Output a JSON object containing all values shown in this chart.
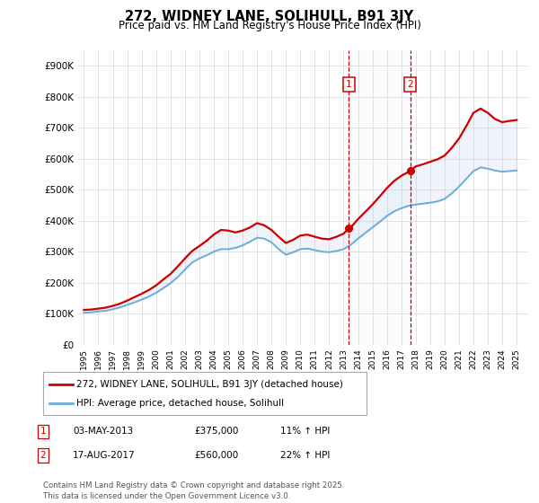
{
  "title": "272, WIDNEY LANE, SOLIHULL, B91 3JY",
  "subtitle": "Price paid vs. HM Land Registry's House Price Index (HPI)",
  "ylim": [
    0,
    950000
  ],
  "yticks": [
    0,
    100000,
    200000,
    300000,
    400000,
    500000,
    600000,
    700000,
    800000,
    900000
  ],
  "ytick_labels": [
    "£0",
    "£100K",
    "£200K",
    "£300K",
    "£400K",
    "£500K",
    "£600K",
    "£700K",
    "£800K",
    "£900K"
  ],
  "hpi_color": "#6baed6",
  "price_color": "#cc0000",
  "marker1_date": 2013.35,
  "marker1_price": 375000,
  "marker2_date": 2017.62,
  "marker2_price": 560000,
  "marker1_label": "03-MAY-2013",
  "marker1_value": "£375,000",
  "marker1_pct": "11% ↑ HPI",
  "marker2_label": "17-AUG-2017",
  "marker2_value": "£560,000",
  "marker2_pct": "22% ↑ HPI",
  "legend_line1": "272, WIDNEY LANE, SOLIHULL, B91 3JY (detached house)",
  "legend_line2": "HPI: Average price, detached house, Solihull",
  "footer": "Contains HM Land Registry data © Crown copyright and database right 2025.\nThis data is licensed under the Open Government Licence v3.0.",
  "background_color": "#ffffff",
  "grid_color": "#dddddd",
  "hpi_points": [
    [
      1995.0,
      103000
    ],
    [
      1995.5,
      104000
    ],
    [
      1996.0,
      107000
    ],
    [
      1996.5,
      109000
    ],
    [
      1997.0,
      114000
    ],
    [
      1997.5,
      120000
    ],
    [
      1998.0,
      128000
    ],
    [
      1998.5,
      136000
    ],
    [
      1999.0,
      145000
    ],
    [
      1999.5,
      155000
    ],
    [
      2000.0,
      167000
    ],
    [
      2000.5,
      182000
    ],
    [
      2001.0,
      198000
    ],
    [
      2001.5,
      218000
    ],
    [
      2002.0,
      242000
    ],
    [
      2002.5,
      265000
    ],
    [
      2003.0,
      278000
    ],
    [
      2003.5,
      288000
    ],
    [
      2004.0,
      300000
    ],
    [
      2004.5,
      308000
    ],
    [
      2005.0,
      308000
    ],
    [
      2005.5,
      312000
    ],
    [
      2006.0,
      320000
    ],
    [
      2006.5,
      332000
    ],
    [
      2007.0,
      345000
    ],
    [
      2007.5,
      342000
    ],
    [
      2008.0,
      330000
    ],
    [
      2008.5,
      308000
    ],
    [
      2009.0,
      290000
    ],
    [
      2009.5,
      298000
    ],
    [
      2010.0,
      308000
    ],
    [
      2010.5,
      310000
    ],
    [
      2011.0,
      305000
    ],
    [
      2011.5,
      300000
    ],
    [
      2012.0,
      298000
    ],
    [
      2012.5,
      302000
    ],
    [
      2013.0,
      308000
    ],
    [
      2013.5,
      322000
    ],
    [
      2014.0,
      342000
    ],
    [
      2014.5,
      360000
    ],
    [
      2015.0,
      378000
    ],
    [
      2015.5,
      396000
    ],
    [
      2016.0,
      415000
    ],
    [
      2016.5,
      430000
    ],
    [
      2017.0,
      440000
    ],
    [
      2017.5,
      448000
    ],
    [
      2018.0,
      452000
    ],
    [
      2018.5,
      455000
    ],
    [
      2019.0,
      458000
    ],
    [
      2019.5,
      462000
    ],
    [
      2020.0,
      470000
    ],
    [
      2020.5,
      488000
    ],
    [
      2021.0,
      510000
    ],
    [
      2021.5,
      535000
    ],
    [
      2022.0,
      560000
    ],
    [
      2022.5,
      572000
    ],
    [
      2023.0,
      568000
    ],
    [
      2023.5,
      562000
    ],
    [
      2024.0,
      558000
    ],
    [
      2024.5,
      560000
    ],
    [
      2025.0,
      562000
    ]
  ],
  "price_points": [
    [
      1995.0,
      112000
    ],
    [
      1995.5,
      113000
    ],
    [
      1996.0,
      116000
    ],
    [
      1996.5,
      119000
    ],
    [
      1997.0,
      125000
    ],
    [
      1997.5,
      132000
    ],
    [
      1998.0,
      142000
    ],
    [
      1998.5,
      153000
    ],
    [
      1999.0,
      164000
    ],
    [
      1999.5,
      176000
    ],
    [
      2000.0,
      191000
    ],
    [
      2000.5,
      210000
    ],
    [
      2001.0,
      228000
    ],
    [
      2001.5,
      252000
    ],
    [
      2002.0,
      278000
    ],
    [
      2002.5,
      302000
    ],
    [
      2003.0,
      318000
    ],
    [
      2003.5,
      335000
    ],
    [
      2004.0,
      355000
    ],
    [
      2004.5,
      370000
    ],
    [
      2005.0,
      368000
    ],
    [
      2005.5,
      362000
    ],
    [
      2006.0,
      368000
    ],
    [
      2006.5,
      378000
    ],
    [
      2007.0,
      392000
    ],
    [
      2007.5,
      385000
    ],
    [
      2008.0,
      370000
    ],
    [
      2008.5,
      348000
    ],
    [
      2009.0,
      328000
    ],
    [
      2009.5,
      338000
    ],
    [
      2010.0,
      352000
    ],
    [
      2010.5,
      355000
    ],
    [
      2011.0,
      348000
    ],
    [
      2011.5,
      342000
    ],
    [
      2012.0,
      340000
    ],
    [
      2012.5,
      348000
    ],
    [
      2013.0,
      358000
    ],
    [
      2013.35,
      375000
    ],
    [
      2013.5,
      378000
    ],
    [
      2014.0,
      405000
    ],
    [
      2014.5,
      428000
    ],
    [
      2015.0,
      452000
    ],
    [
      2015.5,
      478000
    ],
    [
      2016.0,
      505000
    ],
    [
      2016.5,
      528000
    ],
    [
      2017.0,
      545000
    ],
    [
      2017.62,
      560000
    ],
    [
      2017.8,
      568000
    ],
    [
      2018.0,
      575000
    ],
    [
      2018.5,
      582000
    ],
    [
      2019.0,
      590000
    ],
    [
      2019.5,
      598000
    ],
    [
      2020.0,
      610000
    ],
    [
      2020.5,
      635000
    ],
    [
      2021.0,
      665000
    ],
    [
      2021.5,
      705000
    ],
    [
      2022.0,
      748000
    ],
    [
      2022.5,
      762000
    ],
    [
      2023.0,
      748000
    ],
    [
      2023.5,
      728000
    ],
    [
      2024.0,
      718000
    ],
    [
      2024.5,
      722000
    ],
    [
      2025.0,
      725000
    ]
  ]
}
